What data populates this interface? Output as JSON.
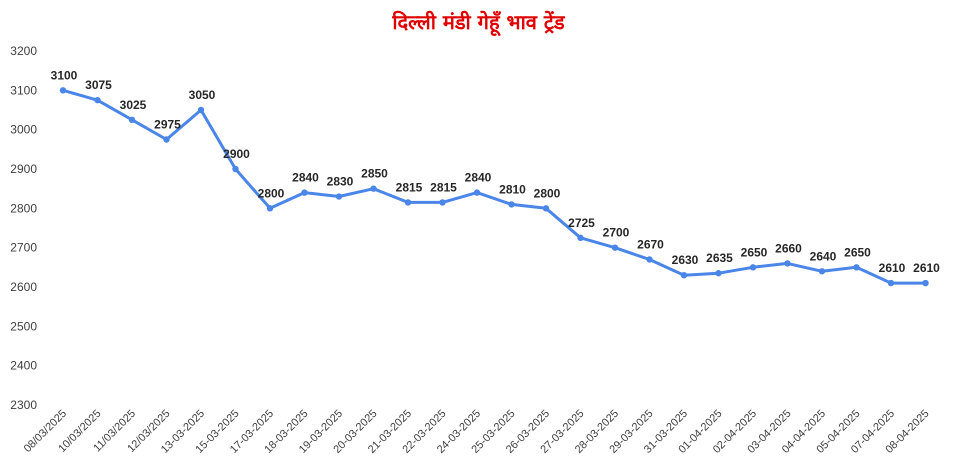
{
  "chart_data": {
    "type": "line",
    "title": "दिल्ली मंडी गेहूँ भाव ट्रेंड",
    "xlabel": "",
    "ylabel": "",
    "ylim": [
      2300,
      3200
    ],
    "yticks": [
      2300,
      2400,
      2500,
      2600,
      2700,
      2800,
      2900,
      3000,
      3100,
      3200
    ],
    "grid": false,
    "legend": "none",
    "line_color": "#4a86e8",
    "title_color": "#e00000",
    "categories": [
      "08/03/2025",
      "10/03/2025",
      "11/03/2025",
      "12/03/2025",
      "13-03-2025",
      "15-03-2025",
      "17-03-2025",
      "18-03-2025",
      "19-03-2025",
      "20-03-2025",
      "21-03-2025",
      "22-03-2025",
      "24-03-2025",
      "25-03-2025",
      "26-03-2025",
      "27-03-2025",
      "28-03-2025",
      "29-03-2025",
      "31-03-2025",
      "01-04-2025",
      "02-04-2025",
      "03-04-2025",
      "04-04-2025",
      "05-04-2025",
      "07-04-2025",
      "08-04-2025"
    ],
    "series": [
      {
        "values": [
          3100,
          3075,
          3025,
          2975,
          3050,
          2900,
          2800,
          2840,
          2830,
          2850,
          2815,
          2815,
          2840,
          2810,
          2800,
          2725,
          2700,
          2670,
          2630,
          2635,
          2650,
          2660,
          2640,
          2650,
          2610,
          2610
        ]
      }
    ]
  }
}
